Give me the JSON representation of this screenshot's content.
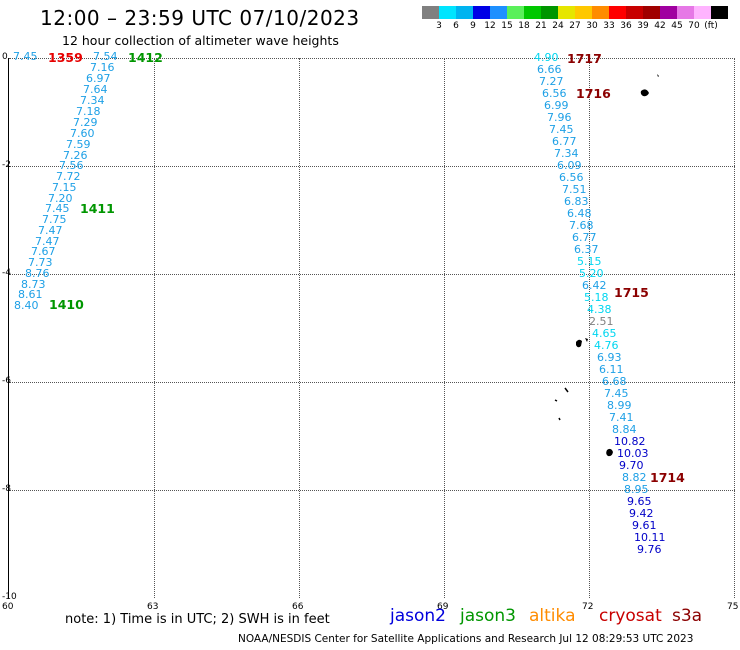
{
  "title": "12:00 – 23:59 UTC 07/10/2023",
  "subtitle": "12 hour collection of altimeter wave heights",
  "colorbar": {
    "colors": [
      "#808080",
      "#00e5ff",
      "#00b4f0",
      "#0000e6",
      "#1e90ff",
      "#5af05a",
      "#00c800",
      "#009600",
      "#e6e600",
      "#ffc800",
      "#ff8c00",
      "#ff0000",
      "#c80000",
      "#a00000",
      "#a000a0",
      "#e678e6",
      "#ffb4ff",
      "#000000"
    ],
    "labels": [
      "3",
      "6",
      "9",
      "12",
      "15",
      "18",
      "21",
      "24",
      "27",
      "30",
      "33",
      "36",
      "39",
      "42",
      "45",
      "70",
      "(ft)"
    ]
  },
  "y_ticks": [
    "0",
    "-2",
    "-4",
    "-6",
    "-8",
    "-10"
  ],
  "x_ticks": [
    "60",
    "63",
    "66",
    "69",
    "72",
    "75"
  ],
  "track_left": {
    "values": [
      "7.45",
      "7.54",
      "7.16",
      "6.97",
      "7.64",
      "7.34",
      "7.18",
      "7.29",
      "7.60",
      "7.59",
      "7.26",
      "7.56",
      "7.72",
      "7.15",
      "7.20",
      "7.45",
      "7.75",
      "7.47",
      "7.47",
      "7.67",
      "7.73",
      "8.76",
      "8.73",
      "8.61",
      "8.40"
    ],
    "color": "#1ea0e6"
  },
  "track_right": {
    "values": [
      "4.90",
      "6.66",
      "7.27",
      "6.56",
      "6.99",
      "7.96",
      "7.45",
      "6.77",
      "7.34",
      "6.09",
      "6.56",
      "7.51",
      "6.83",
      "6.48",
      "7.68",
      "6.77",
      "6.37",
      "5.15",
      "5.20",
      "6.42",
      "5.18",
      "4.38",
      "2.51",
      "4.65",
      "4.76",
      "6.93",
      "6.11",
      "6.68",
      "7.45",
      "8.99",
      "7.41",
      "8.84",
      "10.82",
      "10.03",
      "9.70",
      "8.82",
      "8.95",
      "9.65",
      "9.42",
      "9.61",
      "10.11",
      "9.76"
    ]
  },
  "pass_times": {
    "t1359": "1359",
    "t1412": "1412",
    "t1411": "1411",
    "t1410": "1410",
    "t1717": "1717",
    "t1716": "1716",
    "t1715": "1715",
    "t1714": "1714"
  },
  "note": "note: 1) Time is in UTC; 2) SWH is in feet",
  "satellites": [
    {
      "name": "jason2",
      "color": "#0000dc"
    },
    {
      "name": "jason3",
      "color": "#009600"
    },
    {
      "name": "altika",
      "color": "#ff8c00"
    },
    {
      "name": "cryosat",
      "color": "#c80000"
    },
    {
      "name": "s3a",
      "color": "#8b0000"
    }
  ],
  "credit": "NOAA/NESDIS Center for Satellite Applications and Research   Jul 12 08:29:53 UTC 2023"
}
